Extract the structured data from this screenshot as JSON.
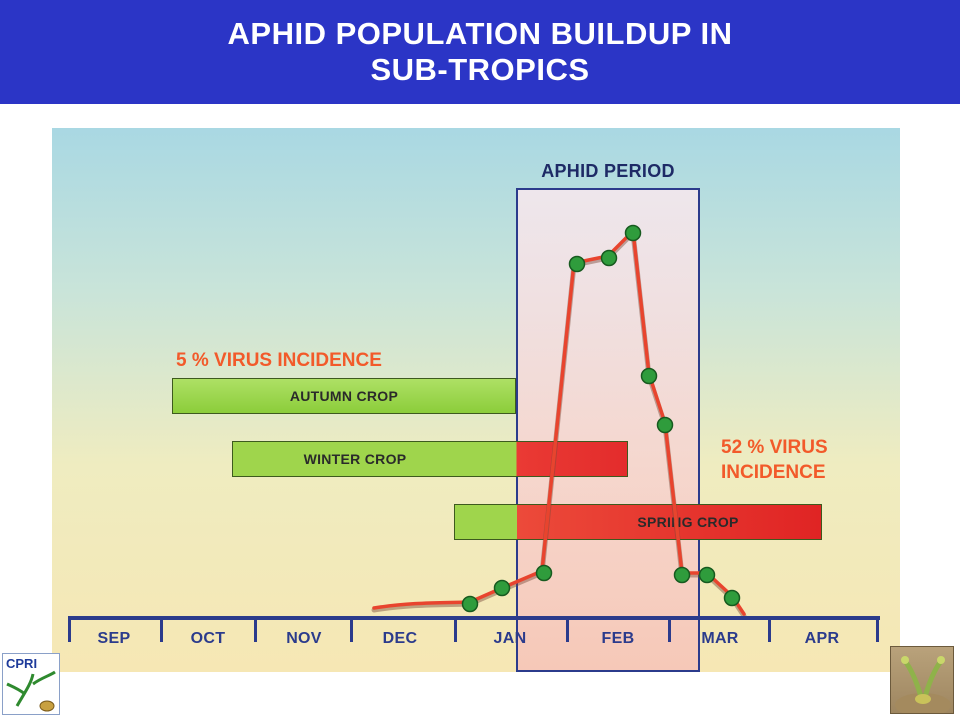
{
  "title": {
    "line1": "APHID POPULATION BUILDUP IN",
    "line2": "SUB-TROPICS"
  },
  "diagram": {
    "aphid_period_label": "APHID PERIOD",
    "incidence_5": "5 % VIRUS INCIDENCE",
    "incidence_52_line1": "52 % VIRUS",
    "incidence_52_line2": "INCIDENCE",
    "crops": {
      "autumn": "AUTUMN CROP",
      "winter": "WINTER CROP",
      "spring": "SPRING  CROP"
    },
    "months": [
      "SEP",
      "OCT",
      "NOV",
      "DEC",
      "JAN",
      "FEB",
      "MAR",
      "APR"
    ]
  },
  "logo": {
    "text": "CPRI"
  },
  "colors": {
    "banner": "#2b35c6",
    "curve": "#e8442e",
    "marker": "#2f9c3c",
    "green_bar": "#9fd54c",
    "red_bar": "#e32c2c",
    "incidence_text": "#f25a2a",
    "axis": "#2b3b8c"
  }
}
